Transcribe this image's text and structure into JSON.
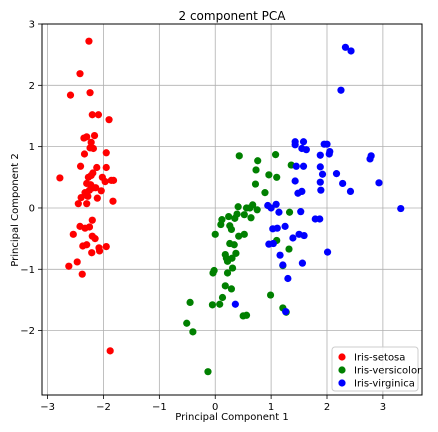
{
  "chart_data": {
    "type": "scatter",
    "title": "2 component PCA",
    "xlabel": "Principal Component 1",
    "ylabel": "Principal Component 2",
    "xlim": [
      -3.1,
      3.7
    ],
    "ylim": [
      -3.05,
      3.0
    ],
    "xticks": [
      -3,
      -2,
      -1,
      0,
      1,
      2,
      3
    ],
    "yticks": [
      -2,
      -1,
      0,
      1,
      2,
      3
    ],
    "xtick_labels": [
      "−3",
      "−2",
      "−1",
      "0",
      "1",
      "2",
      "3"
    ],
    "ytick_labels": [
      "−2",
      "−1",
      "0",
      "1",
      "2",
      "3"
    ],
    "grid": true,
    "legend_position": "lower-right",
    "series": [
      {
        "name": "Iris-setosa",
        "color": "#ff0000",
        "points": [
          [
            -2.26,
            2.72
          ],
          [
            -2.42,
            2.19
          ],
          [
            -2.59,
            1.84
          ],
          [
            -2.24,
            1.88
          ],
          [
            -2.2,
            1.52
          ],
          [
            -2.09,
            1.52
          ],
          [
            -1.9,
            1.44
          ],
          [
            -2.16,
            1.18
          ],
          [
            -2.3,
            1.16
          ],
          [
            -2.35,
            1.14
          ],
          [
            -2.22,
            1.07
          ],
          [
            -2.24,
            0.98
          ],
          [
            -2.18,
            0.97
          ],
          [
            -2.34,
            0.88
          ],
          [
            -1.95,
            0.9
          ],
          [
            -2.41,
            0.68
          ],
          [
            -2.12,
            0.66
          ],
          [
            -1.95,
            0.66
          ],
          [
            -2.78,
            0.49
          ],
          [
            -2.27,
            0.5
          ],
          [
            -2.22,
            0.53
          ],
          [
            -2.19,
            0.57
          ],
          [
            -2.02,
            0.5
          ],
          [
            -1.97,
            0.43
          ],
          [
            -1.86,
            0.45
          ],
          [
            -1.82,
            0.45
          ],
          [
            -2.3,
            0.4
          ],
          [
            -2.23,
            0.38
          ],
          [
            -2.18,
            0.33
          ],
          [
            -2.14,
            0.33
          ],
          [
            -2.04,
            0.28
          ],
          [
            -2.25,
            0.29
          ],
          [
            -2.33,
            0.25
          ],
          [
            -2.4,
            0.17
          ],
          [
            -2.28,
            0.19
          ],
          [
            -2.11,
            0.16
          ],
          [
            -1.83,
            0.11
          ],
          [
            -2.45,
            0.07
          ],
          [
            -2.3,
            0.07
          ],
          [
            -2.2,
            -0.2
          ],
          [
            -2.54,
            -0.43
          ],
          [
            -2.33,
            -0.33
          ],
          [
            -2.25,
            -0.31
          ],
          [
            -2.42,
            -0.3
          ],
          [
            -2.2,
            -0.46
          ],
          [
            -2.15,
            -0.5
          ],
          [
            -2.08,
            -0.65
          ],
          [
            -2.3,
            -0.6
          ],
          [
            -2.37,
            -0.62
          ],
          [
            -1.95,
            -0.63
          ],
          [
            -2.21,
            -0.73
          ],
          [
            -2.07,
            -0.7
          ],
          [
            -2.47,
            -0.88
          ],
          [
            -2.62,
            -0.95
          ],
          [
            -2.38,
            -1.08
          ],
          [
            -1.88,
            -2.33
          ]
        ]
      },
      {
        "name": "Iris-versicolor",
        "color": "#008000",
        "points": [
          [
            0.43,
            0.85
          ],
          [
            1.08,
            0.87
          ],
          [
            0.76,
            0.77
          ],
          [
            1.36,
            0.7
          ],
          [
            0.73,
            0.62
          ],
          [
            0.96,
            0.54
          ],
          [
            1.1,
            0.5
          ],
          [
            0.72,
            0.39
          ],
          [
            0.89,
            0.25
          ],
          [
            0.67,
            0.05
          ],
          [
            0.62,
            0.0
          ],
          [
            0.56,
            0.0
          ],
          [
            0.41,
            0.02
          ],
          [
            0.75,
            -0.03
          ],
          [
            0.39,
            -0.1
          ],
          [
            0.52,
            -0.11
          ],
          [
            0.24,
            -0.14
          ],
          [
            0.64,
            -0.16
          ],
          [
            0.35,
            -0.17
          ],
          [
            0.12,
            -0.19
          ],
          [
            0.1,
            -0.27
          ],
          [
            1.33,
            -0.07
          ],
          [
            0.26,
            -0.29
          ],
          [
            0.52,
            -0.43
          ],
          [
            0.42,
            -0.46
          ],
          [
            0.26,
            -0.58
          ],
          [
            0.34,
            -0.6
          ],
          [
            0.29,
            -0.35
          ],
          [
            1.1,
            -0.53
          ],
          [
            0.0,
            -0.43
          ],
          [
            0.18,
            -0.76
          ],
          [
            0.37,
            -0.74
          ],
          [
            0.3,
            -0.82
          ],
          [
            0.2,
            -0.82
          ],
          [
            0.22,
            -0.87
          ],
          [
            0.31,
            -0.98
          ],
          [
            0.22,
            -1.06
          ],
          [
            -0.04,
            -1.06
          ],
          [
            -0.02,
            -1.02
          ],
          [
            0.18,
            -1.27
          ],
          [
            0.29,
            -1.32
          ],
          [
            0.13,
            -1.46
          ],
          [
            -0.45,
            -1.54
          ],
          [
            -0.05,
            -1.58
          ],
          [
            0.08,
            -1.57
          ],
          [
            0.5,
            -1.76
          ],
          [
            0.56,
            -1.75
          ],
          [
            0.99,
            -1.42
          ],
          [
            1.21,
            -1.63
          ],
          [
            1.27,
            -1.7
          ],
          [
            -0.51,
            -1.88
          ],
          [
            -0.4,
            -2.02
          ],
          [
            -0.13,
            -2.67
          ],
          [
            1.21,
            -0.94
          ],
          [
            1.32,
            -0.67
          ]
        ]
      },
      {
        "name": "Iris-virginica",
        "color": "#0000ff",
        "points": [
          [
            2.33,
            2.62
          ],
          [
            2.43,
            2.56
          ],
          [
            2.25,
            1.92
          ],
          [
            1.43,
            1.08
          ],
          [
            1.58,
            1.08
          ],
          [
            1.63,
            0.95
          ],
          [
            1.55,
            0.97
          ],
          [
            1.95,
            1.04
          ],
          [
            2.0,
            1.04
          ],
          [
            2.05,
            0.92
          ],
          [
            2.04,
            0.88
          ],
          [
            1.88,
            0.86
          ],
          [
            1.43,
            1.03
          ],
          [
            2.79,
            0.85
          ],
          [
            2.77,
            0.8
          ],
          [
            1.58,
            0.68
          ],
          [
            1.45,
            0.68
          ],
          [
            1.88,
            0.67
          ],
          [
            1.92,
            0.55
          ],
          [
            2.17,
            0.56
          ],
          [
            2.28,
            0.4
          ],
          [
            2.42,
            0.27
          ],
          [
            2.93,
            0.41
          ],
          [
            1.88,
            0.42
          ],
          [
            1.43,
            0.44
          ],
          [
            1.48,
            0.24
          ],
          [
            1.55,
            0.27
          ],
          [
            1.89,
            0.29
          ],
          [
            1.09,
            0.06
          ],
          [
            1.0,
            -0.0
          ],
          [
            0.94,
            0.04
          ],
          [
            1.14,
            -0.07
          ],
          [
            1.53,
            -0.06
          ],
          [
            1.03,
            -0.34
          ],
          [
            1.11,
            -0.33
          ],
          [
            1.25,
            -0.3
          ],
          [
            1.79,
            -0.18
          ],
          [
            1.87,
            -0.18
          ],
          [
            1.5,
            -0.43
          ],
          [
            1.59,
            -0.45
          ],
          [
            1.39,
            -0.49
          ],
          [
            2.01,
            -0.72
          ],
          [
            0.96,
            -0.59
          ],
          [
            1.04,
            -0.58
          ],
          [
            1.16,
            -0.77
          ],
          [
            1.21,
            -0.93
          ],
          [
            1.56,
            -0.9
          ],
          [
            1.3,
            -1.15
          ],
          [
            1.26,
            -1.69
          ],
          [
            0.36,
            -1.57
          ],
          [
            3.32,
            -0.01
          ]
        ]
      }
    ]
  }
}
